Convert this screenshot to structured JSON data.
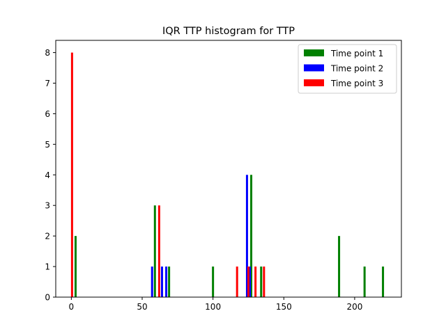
{
  "chart_data": {
    "type": "bar",
    "title": "IQR TTP histogram for TTP",
    "xlabel": "",
    "ylabel": "",
    "xlim": [
      -11,
      233
    ],
    "ylim": [
      0,
      8.4
    ],
    "x_ticks": [
      0,
      50,
      100,
      150,
      200
    ],
    "y_ticks": [
      0,
      1,
      2,
      3,
      4,
      5,
      6,
      7,
      8
    ],
    "legend_position": "top-right",
    "grid": false,
    "series": [
      {
        "name": "Time point 1",
        "color": "#008000",
        "bins": [
          {
            "x": 3,
            "value": 2
          },
          {
            "x": 59,
            "value": 3
          },
          {
            "x": 69,
            "value": 1
          },
          {
            "x": 100,
            "value": 1
          },
          {
            "x": 127,
            "value": 4
          },
          {
            "x": 134,
            "value": 1
          },
          {
            "x": 189,
            "value": 2
          },
          {
            "x": 207,
            "value": 1
          },
          {
            "x": 220,
            "value": 1
          }
        ]
      },
      {
        "name": "Time point 2",
        "color": "#0000ff",
        "bins": [
          {
            "x": 57,
            "value": 1
          },
          {
            "x": 64,
            "value": 1
          },
          {
            "x": 67,
            "value": 1
          },
          {
            "x": 124,
            "value": 4
          },
          {
            "x": 126,
            "value": 1
          }
        ]
      },
      {
        "name": "Time point 3",
        "color": "#ff0000",
        "bins": [
          {
            "x": 0.5,
            "value": 8
          },
          {
            "x": 62,
            "value": 3
          },
          {
            "x": 117,
            "value": 1
          },
          {
            "x": 125,
            "value": 1
          },
          {
            "x": 130,
            "value": 1
          },
          {
            "x": 136,
            "value": 1
          }
        ]
      }
    ]
  }
}
